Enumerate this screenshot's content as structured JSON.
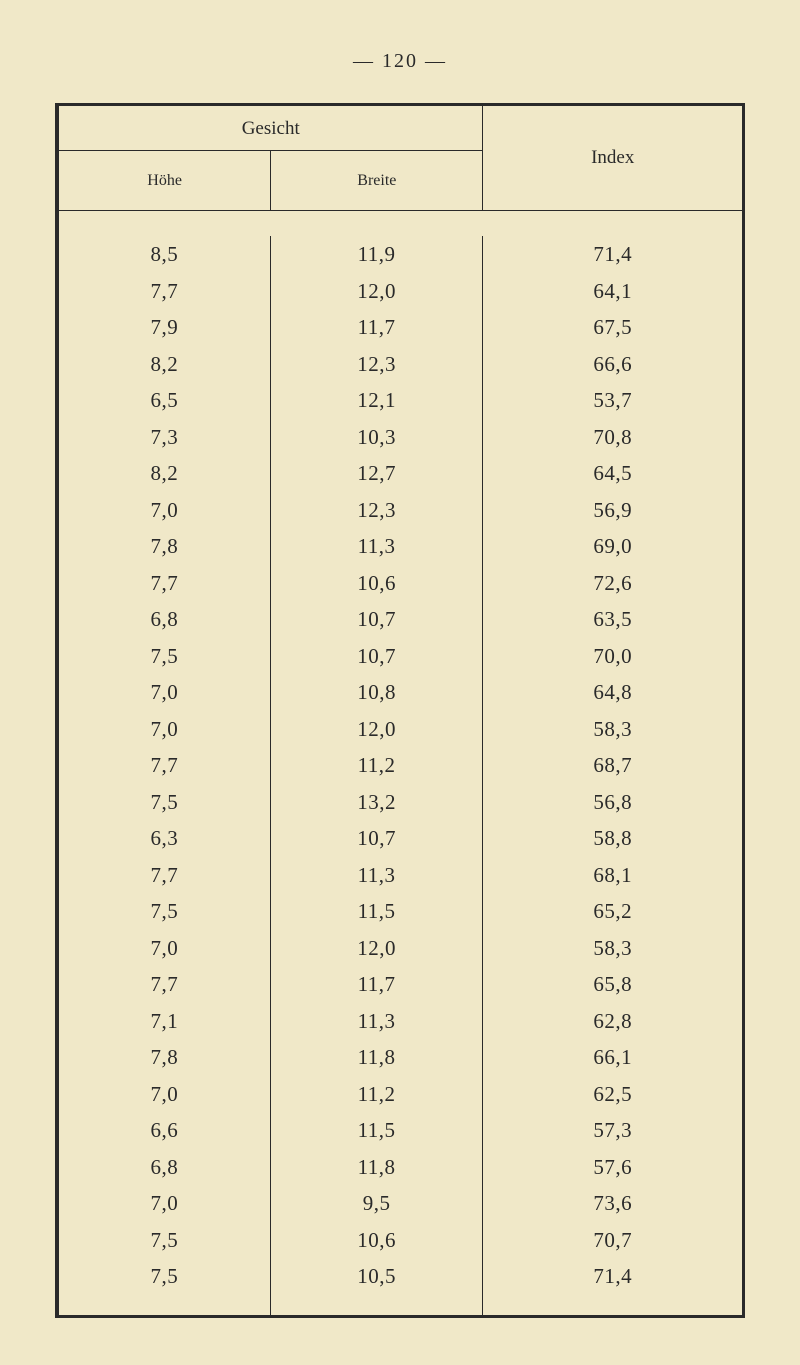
{
  "page_number": "— 120 —",
  "headers": {
    "gesicht": "Gesicht",
    "hohe": "Höhe",
    "breite": "Breite",
    "index": "Index"
  },
  "columns": {
    "hohe": [
      "8,5",
      "7,7",
      "7,9",
      "8,2",
      "6,5",
      "7,3",
      "8,2",
      "7,0",
      "7,8",
      "7,7",
      "6,8",
      "7,5",
      "7,0",
      "7,0",
      "7,7",
      "7,5",
      "6,3",
      "7,7",
      "7,5",
      "7,0",
      "7,7",
      "7,1",
      "7,8",
      "7,0",
      "6,6",
      "6,8",
      "7,0",
      "7,5",
      "7,5"
    ],
    "breite": [
      "11,9",
      "12,0",
      "11,7",
      "12,3",
      "12,1",
      "10,3",
      "12,7",
      "12,3",
      "11,3",
      "10,6",
      "10,7",
      "10,7",
      "10,8",
      "12,0",
      "11,2",
      "13,2",
      "10,7",
      "11,3",
      "11,5",
      "12,0",
      "11,7",
      "11,3",
      "11,8",
      "11,2",
      "11,5",
      "11,8",
      "9,5",
      "10,6",
      "10,5"
    ],
    "index": [
      "71,4",
      "64,1",
      "67,5",
      "66,6",
      "53,7",
      "70,8",
      "64,5",
      "56,9",
      "69,0",
      "72,6",
      "63,5",
      "70,0",
      "64,8",
      "58,3",
      "68,7",
      "56,8",
      "58,8",
      "68,1",
      "65,2",
      "58,3",
      "65,8",
      "62,8",
      "66,1",
      "62,5",
      "57,3",
      "57,6",
      "73,6",
      "70,7",
      "71,4"
    ]
  },
  "style": {
    "background_color": "#f0e8c8",
    "text_color": "#2a2a2a",
    "border_color": "#2a2a2a",
    "font_family": "Georgia, Times New Roman, serif",
    "cell_fontsize": 21,
    "header_fontsize": 19,
    "subheader_fontsize": 16,
    "line_height": 36.5
  }
}
